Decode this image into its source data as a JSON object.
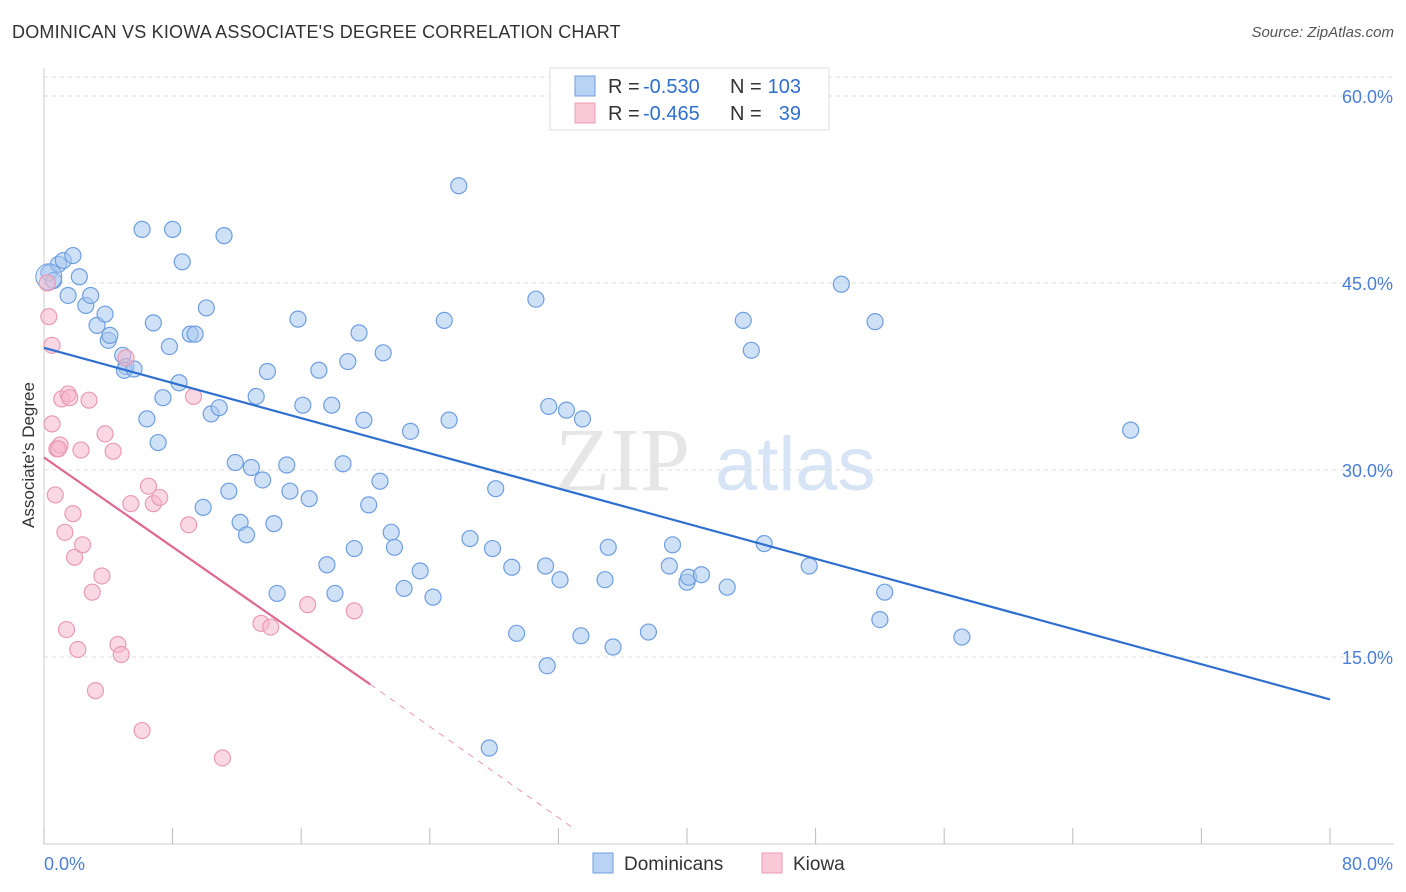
{
  "title": "DOMINICAN VS KIOWA ASSOCIATE'S DEGREE CORRELATION CHART",
  "source": "Source: ZipAtlas.com",
  "watermark": {
    "zip": "ZIP",
    "atlas": "atlas"
  },
  "colors": {
    "dominican_fill": "#a8c8f0",
    "dominican_line": "#2f6fd0",
    "kiowa_fill": "#f5b8cc",
    "kiowa_line": "#e06890"
  },
  "chart_data": {
    "type": "scatter",
    "title": "DOMINICAN VS KIOWA ASSOCIATE'S DEGREE CORRELATION CHART",
    "xlabel": "",
    "ylabel": "Associate's Degree",
    "xlim": [
      0,
      80
    ],
    "ylim": [
      0,
      60
    ],
    "x_tick_labels": [
      "0.0%",
      "80.0%"
    ],
    "y_ticks": [
      15,
      30,
      45,
      60
    ],
    "y_tick_labels": [
      "15.0%",
      "30.0%",
      "45.0%",
      "60.0%"
    ],
    "legend": [
      {
        "name": "Dominicans",
        "r_label": "R =",
        "r": "-0.530",
        "n_label": "N =",
        "n": "103"
      },
      {
        "name": "Kiowa",
        "r_label": "R =",
        "r": "-0.465",
        "n_label": "N =",
        "n": "39"
      }
    ],
    "series": [
      {
        "name": "Dominicans",
        "trend": {
          "x0": 0,
          "y0": 39.8,
          "x1": 80,
          "y1": 11.6
        },
        "points": [
          [
            0.3,
            45.8
          ],
          [
            0.6,
            45.2
          ],
          [
            0.9,
            46.5
          ],
          [
            1.2,
            46.8
          ],
          [
            1.8,
            47.2
          ],
          [
            2.2,
            45.5
          ],
          [
            1.5,
            44.0
          ],
          [
            2.6,
            43.2
          ],
          [
            2.9,
            44.0
          ],
          [
            3.3,
            41.6
          ],
          [
            3.8,
            42.5
          ],
          [
            4.0,
            40.4
          ],
          [
            4.1,
            40.8
          ],
          [
            4.9,
            39.2
          ],
          [
            5.1,
            38.3
          ],
          [
            5.0,
            38.0
          ],
          [
            5.6,
            38.1
          ],
          [
            6.1,
            49.3
          ],
          [
            6.4,
            34.1
          ],
          [
            6.8,
            41.8
          ],
          [
            7.1,
            32.2
          ],
          [
            7.4,
            35.8
          ],
          [
            7.8,
            39.9
          ],
          [
            8.0,
            49.3
          ],
          [
            8.4,
            37.0
          ],
          [
            8.6,
            46.7
          ],
          [
            9.1,
            40.9
          ],
          [
            9.4,
            40.9
          ],
          [
            9.9,
            27.0
          ],
          [
            10.1,
            43.0
          ],
          [
            10.4,
            34.5
          ],
          [
            10.9,
            35.0
          ],
          [
            11.2,
            48.8
          ],
          [
            11.5,
            28.3
          ],
          [
            11.9,
            30.6
          ],
          [
            12.2,
            25.8
          ],
          [
            12.6,
            24.8
          ],
          [
            12.9,
            30.2
          ],
          [
            13.2,
            35.9
          ],
          [
            13.6,
            29.2
          ],
          [
            13.9,
            37.9
          ],
          [
            14.3,
            25.7
          ],
          [
            14.5,
            20.1
          ],
          [
            15.1,
            30.4
          ],
          [
            15.3,
            28.3
          ],
          [
            15.8,
            42.1
          ],
          [
            16.1,
            35.2
          ],
          [
            16.5,
            27.7
          ],
          [
            17.1,
            38.0
          ],
          [
            17.6,
            22.4
          ],
          [
            17.9,
            35.2
          ],
          [
            18.1,
            20.1
          ],
          [
            18.6,
            30.5
          ],
          [
            18.9,
            38.7
          ],
          [
            19.3,
            23.7
          ],
          [
            19.6,
            41.0
          ],
          [
            19.9,
            34.0
          ],
          [
            20.2,
            27.2
          ],
          [
            20.9,
            29.1
          ],
          [
            21.1,
            39.4
          ],
          [
            21.6,
            25.0
          ],
          [
            21.8,
            23.8
          ],
          [
            22.4,
            20.5
          ],
          [
            22.8,
            33.1
          ],
          [
            23.4,
            21.9
          ],
          [
            24.2,
            19.8
          ],
          [
            24.9,
            42.0
          ],
          [
            25.2,
            34.0
          ],
          [
            25.8,
            52.8
          ],
          [
            26.5,
            24.5
          ],
          [
            27.9,
            23.7
          ],
          [
            28.1,
            28.5
          ],
          [
            27.7,
            7.7
          ],
          [
            29.1,
            22.2
          ],
          [
            29.4,
            16.9
          ],
          [
            30.6,
            43.7
          ],
          [
            31.2,
            22.3
          ],
          [
            31.4,
            35.1
          ],
          [
            31.3,
            14.3
          ],
          [
            32.1,
            21.2
          ],
          [
            32.5,
            34.8
          ],
          [
            33.5,
            34.1
          ],
          [
            33.4,
            16.7
          ],
          [
            34.9,
            21.2
          ],
          [
            35.1,
            23.8
          ],
          [
            35.4,
            15.8
          ],
          [
            37.6,
            17.0
          ],
          [
            38.9,
            22.3
          ],
          [
            39.1,
            24.0
          ],
          [
            40.0,
            21.0
          ],
          [
            40.1,
            21.4
          ],
          [
            40.9,
            21.6
          ],
          [
            42.5,
            20.6
          ],
          [
            43.5,
            42.0
          ],
          [
            44.0,
            39.6
          ],
          [
            44.8,
            24.1
          ],
          [
            47.6,
            22.3
          ],
          [
            49.6,
            44.9
          ],
          [
            51.7,
            41.9
          ],
          [
            52.0,
            18.0
          ],
          [
            52.3,
            20.2
          ],
          [
            57.1,
            16.6
          ],
          [
            67.6,
            33.2
          ]
        ]
      },
      {
        "name": "Kiowa",
        "trend": {
          "x0": 0,
          "y0": 31.0,
          "x1": 20.3,
          "y1": 12.8,
          "dashed_to": {
            "x": 33.0,
            "y": 1.2
          }
        },
        "points": [
          [
            0.2,
            45.0
          ],
          [
            0.3,
            42.3
          ],
          [
            0.5,
            40.0
          ],
          [
            0.5,
            33.7
          ],
          [
            0.7,
            28.0
          ],
          [
            0.8,
            31.7
          ],
          [
            1.0,
            32.0
          ],
          [
            1.1,
            35.7
          ],
          [
            1.3,
            25.0
          ],
          [
            1.4,
            17.2
          ],
          [
            1.5,
            36.1
          ],
          [
            1.6,
            35.8
          ],
          [
            1.8,
            26.5
          ],
          [
            1.9,
            23.0
          ],
          [
            2.1,
            15.6
          ],
          [
            2.3,
            31.6
          ],
          [
            2.4,
            24.0
          ],
          [
            2.8,
            35.6
          ],
          [
            3.0,
            20.2
          ],
          [
            3.2,
            12.3
          ],
          [
            3.6,
            21.5
          ],
          [
            3.8,
            32.9
          ],
          [
            4.3,
            31.5
          ],
          [
            4.6,
            16.0
          ],
          [
            4.8,
            15.2
          ],
          [
            5.1,
            39.0
          ],
          [
            5.4,
            27.3
          ],
          [
            6.1,
            9.1
          ],
          [
            6.5,
            28.7
          ],
          [
            6.8,
            27.3
          ],
          [
            7.2,
            27.8
          ],
          [
            9.0,
            25.6
          ],
          [
            9.3,
            35.9
          ],
          [
            11.1,
            6.9
          ],
          [
            13.5,
            17.7
          ],
          [
            14.1,
            17.4
          ],
          [
            16.4,
            19.2
          ],
          [
            19.3,
            18.7
          ],
          [
            0.9,
            31.7
          ]
        ]
      }
    ]
  }
}
